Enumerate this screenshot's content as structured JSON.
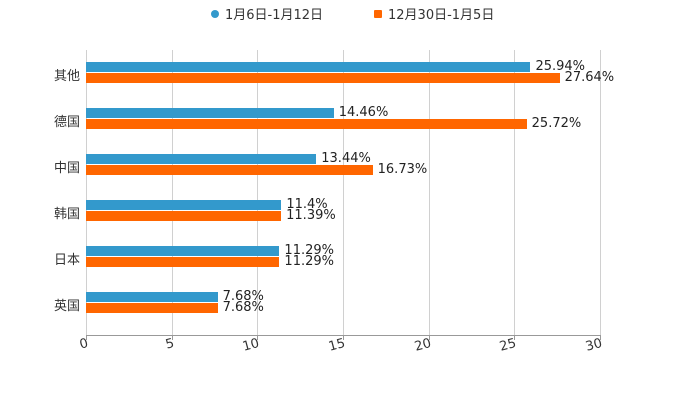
{
  "chart_data": {
    "type": "bar",
    "orientation": "horizontal",
    "title": "",
    "xlabel": "",
    "ylabel": "",
    "xlim": [
      0,
      30
    ],
    "x_ticks": [
      "0",
      "5",
      "10",
      "15",
      "20",
      "25",
      "30"
    ],
    "grid": true,
    "legend_position": "top",
    "categories": [
      "其他",
      "德国",
      "中国",
      "韩国",
      "日本",
      "英国"
    ],
    "series": [
      {
        "name": "1月6日-1月12日",
        "color": "#3399cc",
        "values": [
          25.94,
          14.46,
          13.44,
          11.4,
          11.29,
          7.68
        ],
        "labels": [
          "25.94%",
          "14.46%",
          "13.44%",
          "11.4%",
          "11.29%",
          "7.68%"
        ]
      },
      {
        "name": "12月30日-1月5日",
        "color": "#ff6600",
        "values": [
          27.64,
          25.72,
          16.73,
          11.39,
          11.29,
          7.68
        ],
        "labels": [
          "27.64%",
          "25.72%",
          "16.73%",
          "11.39%",
          "11.29%",
          "7.68%"
        ]
      }
    ]
  },
  "legend": {
    "items": [
      {
        "label": "1月6日-1月12日",
        "color": "#3399cc"
      },
      {
        "label": "12月30日-1月5日",
        "color": "#ff6600"
      }
    ]
  }
}
